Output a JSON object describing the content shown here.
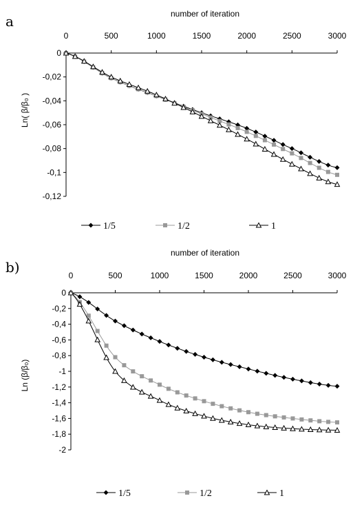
{
  "panels": [
    {
      "letter": "a",
      "xlabel": "number of iteration",
      "ylabel": "Ln( β/β₀ )",
      "xticks": [
        "0",
        "500",
        "1000",
        "1500",
        "2000",
        "2500",
        "3000"
      ],
      "yticks": [
        "0",
        "-0,02",
        "-0,04",
        "-0,06",
        "-0,08",
        "-0,1",
        "-0,12"
      ],
      "legend": [
        "1/5",
        "1/2",
        "1"
      ]
    },
    {
      "letter": "b)",
      "xlabel": "number of iteration",
      "ylabel": "Ln (β/β₀)",
      "xticks": [
        "0",
        "500",
        "1000",
        "1500",
        "2000",
        "2500",
        "3000"
      ],
      "yticks": [
        "0",
        "-0,2",
        "-0,4",
        "-0,6",
        "-0,8",
        "-1",
        "-1,2",
        "-1,4",
        "-1,6",
        "-1,8",
        "-2"
      ],
      "legend": [
        "1/5",
        "1/2",
        "1"
      ]
    }
  ],
  "chart_data": [
    {
      "type": "line",
      "title": "",
      "xlabel": "number of iteration",
      "ylabel": "Ln( β/β₀ )",
      "xlim": [
        0,
        3000
      ],
      "ylim": [
        -0.12,
        0
      ],
      "x_axis_position": "top",
      "grid": false,
      "legend_position": "bottom",
      "series": [
        {
          "name": "1/5",
          "marker": "diamond",
          "color": "#000000",
          "x": [
            0,
            500,
            1000,
            1500,
            2000,
            2500,
            3000
          ],
          "y": [
            0,
            -0.021,
            -0.036,
            -0.05,
            -0.063,
            -0.08,
            -0.096
          ]
        },
        {
          "name": "1/2",
          "marker": "square",
          "color": "#999999",
          "x": [
            0,
            500,
            1000,
            1500,
            2000,
            2500,
            3000
          ],
          "y": [
            0,
            -0.021,
            -0.036,
            -0.051,
            -0.066,
            -0.084,
            -0.102
          ]
        },
        {
          "name": "1",
          "marker": "triangle",
          "color": "#000000",
          "x": [
            0,
            500,
            1000,
            1500,
            2000,
            2500,
            3000
          ],
          "y": [
            0,
            -0.02,
            -0.035,
            -0.053,
            -0.072,
            -0.093,
            -0.11
          ]
        }
      ]
    },
    {
      "type": "line",
      "title": "",
      "xlabel": "number of iteration",
      "ylabel": "Ln (β/β₀)",
      "xlim": [
        0,
        3000
      ],
      "ylim": [
        -2,
        0
      ],
      "x_axis_position": "top",
      "grid": false,
      "legend_position": "bottom",
      "series": [
        {
          "name": "1/5",
          "marker": "diamond",
          "color": "#000000",
          "x": [
            0,
            500,
            1000,
            1500,
            2000,
            2500,
            3000
          ],
          "y": [
            0,
            -0.36,
            -0.62,
            -0.82,
            -0.97,
            -1.1,
            -1.19
          ]
        },
        {
          "name": "1/2",
          "marker": "square",
          "color": "#999999",
          "x": [
            0,
            500,
            1000,
            1500,
            2000,
            2500,
            3000
          ],
          "y": [
            0,
            -0.82,
            -1.17,
            -1.38,
            -1.52,
            -1.6,
            -1.65
          ]
        },
        {
          "name": "1",
          "marker": "triangle",
          "color": "#000000",
          "x": [
            0,
            500,
            1000,
            1500,
            2000,
            2500,
            3000
          ],
          "y": [
            0,
            -1.0,
            -1.37,
            -1.57,
            -1.68,
            -1.73,
            -1.75
          ]
        }
      ]
    }
  ]
}
